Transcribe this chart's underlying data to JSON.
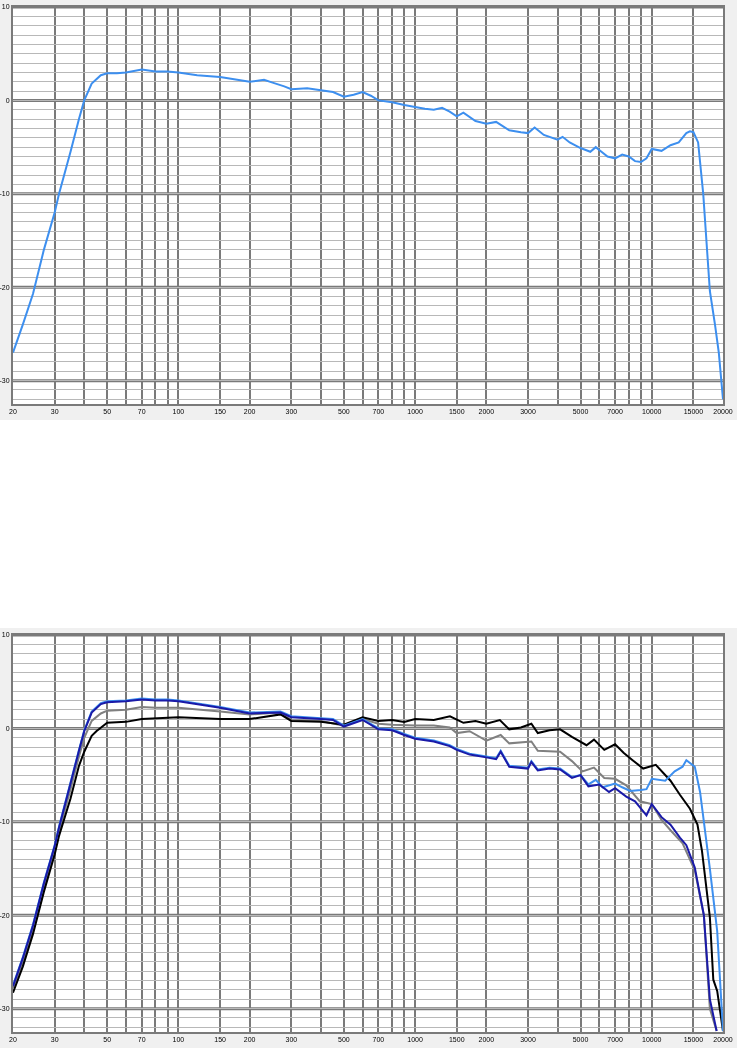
{
  "chart_data": [
    {
      "type": "line",
      "log": "x",
      "grid": true,
      "xlim": [
        20,
        20000
      ],
      "ylim": [
        -32.5,
        10
      ],
      "xticks": [
        20,
        30,
        {
          "value": 40,
          "label": null
        },
        50,
        {
          "value": 60,
          "label": null
        },
        70,
        {
          "value": 80,
          "label": null
        },
        {
          "value": 90,
          "label": null
        },
        100,
        150,
        200,
        300,
        {
          "value": 400,
          "label": null
        },
        500,
        {
          "value": 600,
          "label": null
        },
        700,
        {
          "value": 800,
          "label": null
        },
        {
          "value": 900,
          "label": null
        },
        1000,
        1500,
        2000,
        3000,
        {
          "value": 4000,
          "label": null
        },
        5000,
        {
          "value": 6000,
          "label": null
        },
        7000,
        {
          "value": 8000,
          "label": null
        },
        {
          "value": 9000,
          "label": null
        },
        10000,
        15000,
        20000
      ],
      "yticks": [
        10,
        {
          "value": 9,
          "label": null
        },
        {
          "value": 8,
          "label": null
        },
        {
          "value": 7,
          "label": null
        },
        {
          "value": 6,
          "label": null
        },
        {
          "value": 5,
          "label": null
        },
        {
          "value": 4,
          "label": null
        },
        {
          "value": 3,
          "label": null
        },
        {
          "value": 2,
          "label": null
        },
        {
          "value": 1,
          "label": null
        },
        0,
        {
          "value": -1,
          "label": null
        },
        {
          "value": -2,
          "label": null
        },
        {
          "value": -3,
          "label": null
        },
        {
          "value": -4,
          "label": null
        },
        {
          "value": -5,
          "label": null
        },
        {
          "value": -6,
          "label": null
        },
        {
          "value": -7,
          "label": null
        },
        {
          "value": -8,
          "label": null
        },
        {
          "value": -9,
          "label": null
        },
        -10,
        {
          "value": -11,
          "label": null
        },
        {
          "value": -12,
          "label": null
        },
        {
          "value": -13,
          "label": null
        },
        {
          "value": -14,
          "label": null
        },
        {
          "value": -15,
          "label": null
        },
        {
          "value": -16,
          "label": null
        },
        {
          "value": -17,
          "label": null
        },
        {
          "value": -18,
          "label": null
        },
        {
          "value": -19,
          "label": null
        },
        -20,
        {
          "value": -21,
          "label": null
        },
        {
          "value": -22,
          "label": null
        },
        {
          "value": -23,
          "label": null
        },
        {
          "value": -24,
          "label": null
        },
        {
          "value": -25,
          "label": null
        },
        {
          "value": -26,
          "label": null
        },
        {
          "value": -27,
          "label": null
        },
        {
          "value": -28,
          "label": null
        },
        {
          "value": -29,
          "label": null
        },
        -30,
        {
          "value": -31,
          "label": null
        },
        {
          "value": -32,
          "label": null
        }
      ],
      "series": [
        {
          "color": "#3d8fef",
          "x": [
            20,
            22,
            24.3,
            27,
            30,
            31.3,
            35,
            38,
            40,
            43,
            47,
            50,
            55,
            60,
            70,
            80,
            90,
            100,
            120,
            150,
            200,
            230,
            250,
            280,
            300,
            350,
            400,
            450,
            500,
            550,
            600,
            650,
            700,
            800,
            900,
            1000,
            1100,
            1200,
            1300,
            1400,
            1500,
            1600,
            1800,
            2000,
            2200,
            2500,
            2800,
            3000,
            3200,
            3500,
            4000,
            4200,
            4500,
            5000,
            5500,
            5800,
            6000,
            6500,
            7000,
            7500,
            8000,
            8500,
            9000,
            9500,
            10000,
            11000,
            12000,
            13000,
            14000,
            14500,
            15000,
            15700,
            16500,
            17600,
            18500,
            19200,
            20000
          ],
          "values": [
            -27,
            -24,
            -20.7,
            -16,
            -12,
            -10,
            -5.5,
            -2,
            0,
            1.8,
            2.7,
            2.9,
            2.9,
            3.0,
            3.3,
            3.1,
            3.1,
            3.0,
            2.7,
            2.5,
            2.0,
            2.2,
            1.9,
            1.5,
            1.2,
            1.3,
            1.1,
            0.9,
            0.4,
            0.6,
            0.9,
            0.5,
            0.0,
            -0.2,
            -0.5,
            -0.7,
            -0.9,
            -1.0,
            -0.8,
            -1.2,
            -1.7,
            -1.3,
            -2.2,
            -2.5,
            -2.3,
            -3.2,
            -3.4,
            -3.5,
            -2.9,
            -3.7,
            -4.2,
            -3.9,
            -4.5,
            -5.1,
            -5.5,
            -5.0,
            -5.3,
            -6.0,
            -6.2,
            -5.8,
            -6.0,
            -6.5,
            -6.6,
            -6.2,
            -5.2,
            -5.4,
            -4.8,
            -4.5,
            -3.5,
            -3.3,
            -3.4,
            -4.5,
            -10,
            -20.4,
            -24,
            -27,
            -32
          ]
        }
      ]
    },
    {
      "type": "line",
      "log": "x",
      "grid": true,
      "xlim": [
        20,
        20000
      ],
      "ylim": [
        -32.5,
        10
      ],
      "xticks": [
        20,
        30,
        {
          "value": 40,
          "label": null
        },
        50,
        {
          "value": 60,
          "label": null
        },
        70,
        {
          "value": 80,
          "label": null
        },
        {
          "value": 90,
          "label": null
        },
        100,
        150,
        200,
        300,
        {
          "value": 400,
          "label": null
        },
        500,
        {
          "value": 600,
          "label": null
        },
        700,
        {
          "value": 800,
          "label": null
        },
        {
          "value": 900,
          "label": null
        },
        1000,
        1500,
        2000,
        3000,
        {
          "value": 4000,
          "label": null
        },
        5000,
        {
          "value": 6000,
          "label": null
        },
        7000,
        {
          "value": 8000,
          "label": null
        },
        {
          "value": 9000,
          "label": null
        },
        10000,
        15000,
        20000
      ],
      "yticks": [
        10,
        {
          "value": 9,
          "label": null
        },
        {
          "value": 8,
          "label": null
        },
        {
          "value": 7,
          "label": null
        },
        {
          "value": 6,
          "label": null
        },
        {
          "value": 5,
          "label": null
        },
        {
          "value": 4,
          "label": null
        },
        {
          "value": 3,
          "label": null
        },
        {
          "value": 2,
          "label": null
        },
        {
          "value": 1,
          "label": null
        },
        0,
        {
          "value": -1,
          "label": null
        },
        {
          "value": -2,
          "label": null
        },
        {
          "value": -3,
          "label": null
        },
        {
          "value": -4,
          "label": null
        },
        {
          "value": -5,
          "label": null
        },
        {
          "value": -6,
          "label": null
        },
        {
          "value": -7,
          "label": null
        },
        {
          "value": -8,
          "label": null
        },
        {
          "value": -9,
          "label": null
        },
        -10,
        {
          "value": -11,
          "label": null
        },
        {
          "value": -12,
          "label": null
        },
        {
          "value": -13,
          "label": null
        },
        {
          "value": -14,
          "label": null
        },
        {
          "value": -15,
          "label": null
        },
        {
          "value": -16,
          "label": null
        },
        {
          "value": -17,
          "label": null
        },
        {
          "value": -18,
          "label": null
        },
        {
          "value": -19,
          "label": null
        },
        -20,
        {
          "value": -21,
          "label": null
        },
        {
          "value": -22,
          "label": null
        },
        {
          "value": -23,
          "label": null
        },
        {
          "value": -24,
          "label": null
        },
        {
          "value": -25,
          "label": null
        },
        {
          "value": -26,
          "label": null
        },
        {
          "value": -27,
          "label": null
        },
        {
          "value": -28,
          "label": null
        },
        {
          "value": -29,
          "label": null
        },
        -30,
        {
          "value": -31,
          "label": null
        },
        {
          "value": -32,
          "label": null
        }
      ],
      "series": [
        {
          "color": "#808080",
          "x": [
            20,
            22,
            24.3,
            27,
            30,
            31.3,
            35,
            38,
            40,
            43,
            47,
            50,
            60,
            70,
            80,
            100,
            150,
            200,
            270,
            300,
            400,
            500,
            600,
            700,
            800,
            1000,
            1200,
            1400,
            1500,
            1700,
            2000,
            2300,
            2500,
            3100,
            3300,
            4100,
            4600,
            5100,
            5700,
            6300,
            7000,
            7800,
            8900,
            10000,
            11000,
            12000,
            13500,
            15200,
            16600,
            17600,
            18800
          ],
          "values": [
            -27.8,
            -25,
            -21.5,
            -17,
            -13,
            -11,
            -6.5,
            -3,
            -1,
            0.8,
            1.6,
            1.9,
            2.0,
            2.3,
            2.2,
            2.2,
            1.8,
            1.5,
            1.7,
            0.9,
            0.8,
            0.3,
            1.0,
            0.5,
            0.4,
            0.3,
            0.3,
            0.1,
            -0.5,
            -0.3,
            -1.3,
            -0.7,
            -1.6,
            -1.4,
            -2.4,
            -2.5,
            -3.5,
            -4.6,
            -4.2,
            -5.3,
            -5.4,
            -6.1,
            -7.8,
            -8.1,
            -9.8,
            -10.9,
            -12.3,
            -15.2,
            -20,
            -30,
            -32.4
          ]
        },
        {
          "color": "#000000",
          "x": [
            20,
            22,
            24.3,
            27,
            30,
            31.3,
            35,
            38,
            40,
            43,
            45,
            50,
            60,
            70,
            100,
            150,
            200,
            270,
            300,
            400,
            500,
            600,
            700,
            800,
            900,
            1000,
            1200,
            1404,
            1600,
            1800,
            2000,
            2281,
            2500,
            2800,
            3100,
            3300,
            3700,
            4100,
            4600,
            5300,
            5700,
            6300,
            7000,
            7600,
            8300,
            9200,
            10400,
            12000,
            13150,
            14500,
            15600,
            16300,
            17600,
            18200,
            18900,
            20000
          ],
          "values": [
            -28.3,
            -25.5,
            -22,
            -17.5,
            -13.5,
            -11.5,
            -7.5,
            -4,
            -2.5,
            -0.8,
            -0.3,
            0.6,
            0.7,
            1.0,
            1.2,
            1.0,
            1.0,
            1.5,
            0.8,
            0.7,
            0.4,
            1.2,
            0.8,
            0.9,
            0.7,
            1.0,
            0.9,
            1.3,
            0.6,
            0.8,
            0.5,
            0.9,
            -0.1,
            0.1,
            0.5,
            -0.5,
            -0.2,
            -0.1,
            -0.9,
            -1.8,
            -1.2,
            -2.3,
            -1.7,
            -2.6,
            -3.4,
            -4.3,
            -3.9,
            -5.6,
            -7.1,
            -8.6,
            -10.3,
            -13.1,
            -20.2,
            -26.9,
            -28.1,
            -32.4
          ]
        },
        {
          "color": "#3d8fef",
          "x": [
            20,
            22,
            24.3,
            27,
            30,
            31.3,
            35,
            38,
            40,
            43,
            47,
            50,
            60,
            70,
            80,
            90,
            100,
            150,
            200,
            270,
            300,
            400,
            450,
            500,
            600,
            700,
            800,
            900,
            1000,
            1200,
            1400,
            1500,
            1700,
            2000,
            2200,
            2300,
            2500,
            3000,
            3100,
            3300,
            3700,
            4100,
            4600,
            5000,
            5400,
            5800,
            6200,
            7000,
            7500,
            8100,
            9000,
            9500,
            10000,
            11400,
            12500,
            13500,
            14000,
            15200,
            16000,
            17600,
            18900,
            20000
          ],
          "values": [
            -27.5,
            -24.5,
            -21,
            -16.5,
            -12.5,
            -10.5,
            -5.8,
            -2.3,
            -0.2,
            1.8,
            2.7,
            2.9,
            3.0,
            3.2,
            3.1,
            3.1,
            3.0,
            2.3,
            1.7,
            1.8,
            1.3,
            1.1,
            1.0,
            0.3,
            1.0,
            0,
            -0.1,
            -0.6,
            -1.0,
            -1.3,
            -1.8,
            -2.2,
            -2.7,
            -3.0,
            -3.2,
            -2.4,
            -4.0,
            -4.2,
            -3.5,
            -4.4,
            -4.2,
            -4.3,
            -5.2,
            -5.0,
            -6.0,
            -5.5,
            -6.3,
            -5.9,
            -6.3,
            -6.7,
            -6.6,
            -6.5,
            -5.4,
            -5.6,
            -4.6,
            -4.1,
            -3.4,
            -4.1,
            -6.8,
            -15,
            -21.7,
            -32.4
          ]
        },
        {
          "color": "#1a1aa8",
          "x": [
            20,
            22,
            24.3,
            27,
            30,
            31.3,
            35,
            38,
            40,
            43,
            47,
            50,
            60,
            70,
            80,
            90,
            100,
            150,
            200,
            270,
            300,
            400,
            450,
            500,
            600,
            700,
            800,
            900,
            1000,
            1200,
            1400,
            1500,
            1700,
            2000,
            2200,
            2300,
            2500,
            3000,
            3100,
            3300,
            3700,
            4100,
            4600,
            5000,
            5400,
            6000,
            6600,
            7000,
            7800,
            8500,
            9500,
            10000,
            11000,
            12000,
            13150,
            14000,
            15200,
            16600,
            17600,
            18800
          ],
          "values": [
            -27.6,
            -24.6,
            -21.1,
            -16.6,
            -12.6,
            -10.6,
            -5.9,
            -2.4,
            -0.3,
            1.7,
            2.6,
            2.8,
            2.9,
            3.1,
            3.0,
            3.0,
            2.9,
            2.2,
            1.6,
            1.7,
            1.2,
            1.0,
            0.9,
            0.2,
            0.9,
            -0.1,
            -0.2,
            -0.7,
            -1.1,
            -1.4,
            -1.9,
            -2.3,
            -2.8,
            -3.1,
            -3.3,
            -2.5,
            -4.1,
            -4.3,
            -3.6,
            -4.5,
            -4.3,
            -4.4,
            -5.3,
            -5.0,
            -6.2,
            -6.0,
            -6.8,
            -6.4,
            -7.3,
            -7.8,
            -9.3,
            -8.1,
            -9.5,
            -10.3,
            -11.7,
            -12.5,
            -14.9,
            -20,
            -29,
            -32.4
          ]
        }
      ]
    }
  ]
}
